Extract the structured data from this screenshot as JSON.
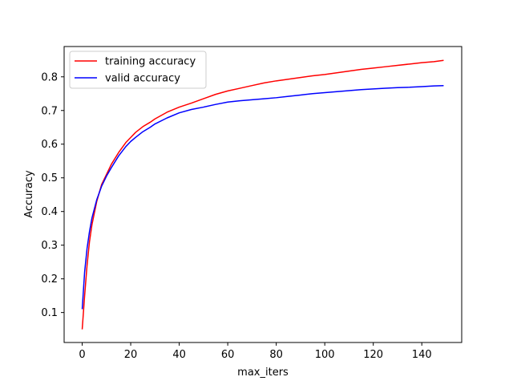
{
  "chart_data": {
    "type": "line",
    "title": "",
    "xlabel": "max_iters",
    "ylabel": "Accuracy",
    "xlim": [
      -7.45,
      156.45
    ],
    "ylim": [
      0.011,
      0.89
    ],
    "xticks": [
      0,
      20,
      40,
      60,
      80,
      100,
      120,
      140
    ],
    "yticks": [
      0.1,
      0.2,
      0.3,
      0.4,
      0.5,
      0.6,
      0.7,
      0.8
    ],
    "grid": false,
    "legend_position": "top-left",
    "x": [
      0,
      1,
      2,
      3,
      4,
      6,
      8,
      10,
      12,
      15,
      18,
      20,
      22,
      25,
      28,
      30,
      35,
      40,
      45,
      50,
      55,
      60,
      65,
      70,
      75,
      80,
      85,
      90,
      95,
      100,
      105,
      110,
      115,
      120,
      125,
      130,
      135,
      140,
      145,
      149
    ],
    "series": [
      {
        "name": "training accuracy",
        "color": "#ff0000",
        "values": [
          0.05,
          0.15,
          0.24,
          0.31,
          0.36,
          0.43,
          0.48,
          0.51,
          0.54,
          0.575,
          0.605,
          0.62,
          0.635,
          0.652,
          0.665,
          0.675,
          0.695,
          0.71,
          0.722,
          0.735,
          0.748,
          0.758,
          0.766,
          0.774,
          0.782,
          0.788,
          0.793,
          0.798,
          0.803,
          0.807,
          0.812,
          0.817,
          0.822,
          0.826,
          0.83,
          0.834,
          0.838,
          0.842,
          0.845,
          0.849
        ]
      },
      {
        "name": "valid accuracy",
        "color": "#0000ff",
        "values": [
          0.11,
          0.22,
          0.29,
          0.34,
          0.38,
          0.435,
          0.475,
          0.505,
          0.53,
          0.565,
          0.593,
          0.608,
          0.62,
          0.637,
          0.65,
          0.66,
          0.678,
          0.693,
          0.703,
          0.71,
          0.718,
          0.725,
          0.729,
          0.732,
          0.735,
          0.738,
          0.742,
          0.746,
          0.75,
          0.753,
          0.756,
          0.759,
          0.762,
          0.764,
          0.766,
          0.768,
          0.769,
          0.771,
          0.773,
          0.774
        ]
      }
    ]
  }
}
